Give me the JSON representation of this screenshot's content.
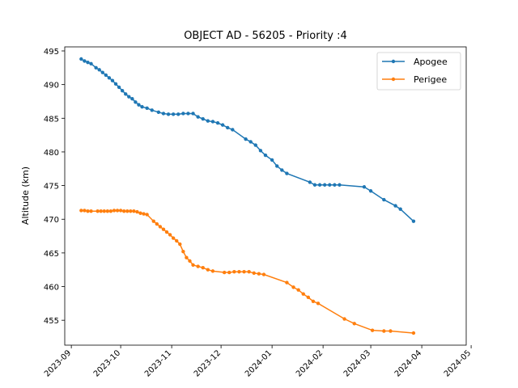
{
  "chart_data": {
    "type": "line",
    "title": "OBJECT AD - 56205 - Priority :4",
    "ylabel": "Altitude (km)",
    "xlabel": "",
    "ylim": [
      451.3,
      495.6
    ],
    "xlim": [
      "2023-08-28",
      "2024-04-28"
    ],
    "grid": false,
    "legend": "top-right",
    "x_ticks": [
      "2023-09",
      "2023-10",
      "2023-11",
      "2023-12",
      "2024-01",
      "2024-02",
      "2024-03",
      "2024-04",
      "2024-05"
    ],
    "y_ticks": [
      455,
      460,
      465,
      470,
      475,
      480,
      485,
      490,
      495
    ],
    "series": [
      {
        "name": "Apogee",
        "color": "#1f77b4",
        "points": [
          [
            "2023-09-07",
            493.8
          ],
          [
            "2023-09-09",
            493.5
          ],
          [
            "2023-09-11",
            493.3
          ],
          [
            "2023-09-13",
            493.1
          ],
          [
            "2023-09-16",
            492.5
          ],
          [
            "2023-09-18",
            492.2
          ],
          [
            "2023-09-20",
            491.8
          ],
          [
            "2023-09-22",
            491.4
          ],
          [
            "2023-09-24",
            491.0
          ],
          [
            "2023-09-26",
            490.6
          ],
          [
            "2023-09-28",
            490.1
          ],
          [
            "2023-09-30",
            489.6
          ],
          [
            "2023-10-02",
            489.1
          ],
          [
            "2023-10-04",
            488.6
          ],
          [
            "2023-10-06",
            488.2
          ],
          [
            "2023-10-08",
            487.9
          ],
          [
            "2023-10-10",
            487.4
          ],
          [
            "2023-10-12",
            487.0
          ],
          [
            "2023-10-14",
            486.7
          ],
          [
            "2023-10-17",
            486.5
          ],
          [
            "2023-10-20",
            486.2
          ],
          [
            "2023-10-24",
            485.9
          ],
          [
            "2023-10-27",
            485.7
          ],
          [
            "2023-10-30",
            485.6
          ],
          [
            "2023-11-02",
            485.6
          ],
          [
            "2023-11-05",
            485.6
          ],
          [
            "2023-11-08",
            485.7
          ],
          [
            "2023-11-11",
            485.7
          ],
          [
            "2023-11-14",
            485.7
          ],
          [
            "2023-11-17",
            485.2
          ],
          [
            "2023-11-20",
            484.9
          ],
          [
            "2023-11-23",
            484.6
          ],
          [
            "2023-11-26",
            484.5
          ],
          [
            "2023-11-29",
            484.3
          ],
          [
            "2023-12-02",
            484.0
          ],
          [
            "2023-12-05",
            483.6
          ],
          [
            "2023-12-08",
            483.3
          ],
          [
            "2023-12-16",
            481.9
          ],
          [
            "2023-12-19",
            481.5
          ],
          [
            "2023-12-22",
            481.0
          ],
          [
            "2023-12-25",
            480.2
          ],
          [
            "2023-12-28",
            479.5
          ],
          [
            "2024-01-01",
            478.8
          ],
          [
            "2024-01-04",
            477.9
          ],
          [
            "2024-01-07",
            477.3
          ],
          [
            "2024-01-10",
            476.8
          ],
          [
            "2024-01-24",
            475.5
          ],
          [
            "2024-01-27",
            475.1
          ],
          [
            "2024-01-30",
            475.1
          ],
          [
            "2024-02-02",
            475.1
          ],
          [
            "2024-02-05",
            475.1
          ],
          [
            "2024-02-08",
            475.1
          ],
          [
            "2024-02-11",
            475.1
          ],
          [
            "2024-02-26",
            474.8
          ],
          [
            "2024-03-01",
            474.2
          ],
          [
            "2024-03-09",
            472.9
          ],
          [
            "2024-03-16",
            472.0
          ],
          [
            "2024-03-19",
            471.5
          ],
          [
            "2024-03-27",
            469.7
          ]
        ]
      },
      {
        "name": "Perigee",
        "color": "#ff7f0e",
        "points": [
          [
            "2023-09-07",
            471.3
          ],
          [
            "2023-09-09",
            471.3
          ],
          [
            "2023-09-11",
            471.2
          ],
          [
            "2023-09-13",
            471.2
          ],
          [
            "2023-09-17",
            471.2
          ],
          [
            "2023-09-19",
            471.2
          ],
          [
            "2023-09-21",
            471.2
          ],
          [
            "2023-09-23",
            471.2
          ],
          [
            "2023-09-25",
            471.2
          ],
          [
            "2023-09-27",
            471.3
          ],
          [
            "2023-09-29",
            471.3
          ],
          [
            "2023-10-01",
            471.3
          ],
          [
            "2023-10-03",
            471.2
          ],
          [
            "2023-10-05",
            471.2
          ],
          [
            "2023-10-07",
            471.2
          ],
          [
            "2023-10-09",
            471.2
          ],
          [
            "2023-10-11",
            471.1
          ],
          [
            "2023-10-13",
            470.9
          ],
          [
            "2023-10-15",
            470.8
          ],
          [
            "2023-10-17",
            470.7
          ],
          [
            "2023-10-21",
            469.7
          ],
          [
            "2023-10-23",
            469.3
          ],
          [
            "2023-10-25",
            468.9
          ],
          [
            "2023-10-27",
            468.5
          ],
          [
            "2023-10-29",
            468.1
          ],
          [
            "2023-10-31",
            467.7
          ],
          [
            "2023-11-02",
            467.2
          ],
          [
            "2023-11-04",
            466.8
          ],
          [
            "2023-11-06",
            466.3
          ],
          [
            "2023-11-08",
            465.2
          ],
          [
            "2023-11-10",
            464.3
          ],
          [
            "2023-11-12",
            463.8
          ],
          [
            "2023-11-14",
            463.2
          ],
          [
            "2023-11-17",
            463.0
          ],
          [
            "2023-11-20",
            462.8
          ],
          [
            "2023-11-23",
            462.5
          ],
          [
            "2023-11-26",
            462.3
          ],
          [
            "2023-12-03",
            462.1
          ],
          [
            "2023-12-06",
            462.1
          ],
          [
            "2023-12-09",
            462.2
          ],
          [
            "2023-12-12",
            462.2
          ],
          [
            "2023-12-15",
            462.2
          ],
          [
            "2023-12-18",
            462.2
          ],
          [
            "2023-12-21",
            462.0
          ],
          [
            "2023-12-24",
            461.9
          ],
          [
            "2023-12-27",
            461.8
          ],
          [
            "2024-01-10",
            460.6
          ],
          [
            "2024-01-14",
            459.9
          ],
          [
            "2024-01-17",
            459.5
          ],
          [
            "2024-01-20",
            458.9
          ],
          [
            "2024-01-23",
            458.4
          ],
          [
            "2024-01-26",
            457.8
          ],
          [
            "2024-01-29",
            457.5
          ],
          [
            "2024-02-14",
            455.2
          ],
          [
            "2024-02-20",
            454.5
          ],
          [
            "2024-03-02",
            453.5
          ],
          [
            "2024-03-09",
            453.4
          ],
          [
            "2024-03-13",
            453.4
          ],
          [
            "2024-03-27",
            453.1
          ]
        ]
      }
    ]
  }
}
